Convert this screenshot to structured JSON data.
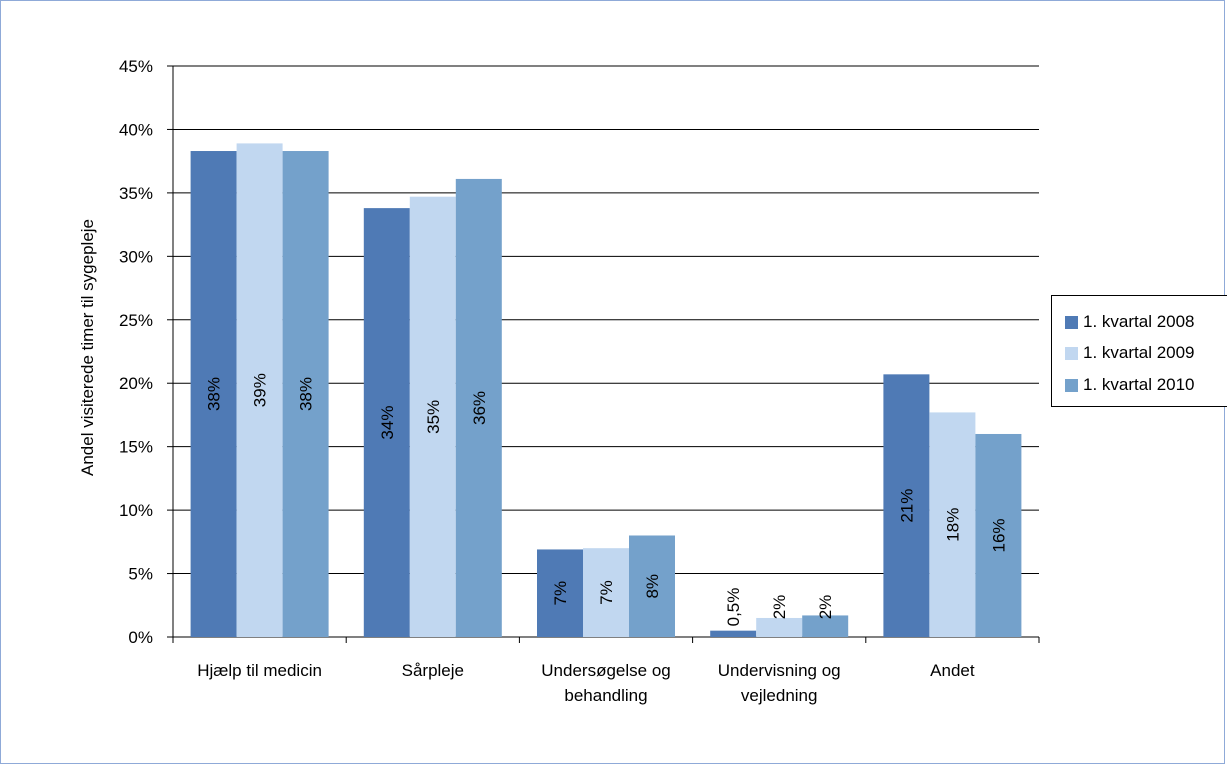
{
  "chart_data": {
    "type": "bar",
    "title": "",
    "xlabel": "",
    "ylabel": "Andel visiterede timer til sygepleje",
    "categories": [
      [
        "Hjælp til medicin"
      ],
      [
        "Sårpleje"
      ],
      [
        "Undersøgelse og",
        "behandling"
      ],
      [
        "Undervisning og",
        "vejledning"
      ],
      [
        "Andet"
      ]
    ],
    "series": [
      {
        "name": "1. kvartal 2008",
        "color": "#4f7ab5",
        "values": [
          38.3,
          33.8,
          6.9,
          0.5,
          20.7
        ],
        "labels": [
          "38%",
          "34%",
          "7%",
          "0,5%",
          "21%"
        ]
      },
      {
        "name": "1. kvartal 2009",
        "color": "#c1d7f0",
        "values": [
          38.9,
          34.7,
          7.0,
          1.5,
          17.7
        ],
        "labels": [
          "39%",
          "35%",
          "7%",
          "2%",
          "18%"
        ]
      },
      {
        "name": "1. kvartal 2010",
        "color": "#74a1cb",
        "values": [
          38.3,
          36.1,
          8.0,
          1.7,
          16.0
        ],
        "labels": [
          "38%",
          "36%",
          "8%",
          "2%",
          "16%"
        ]
      }
    ],
    "ylim": [
      0,
      45
    ],
    "yticks": [
      0,
      5,
      10,
      15,
      20,
      25,
      30,
      35,
      40,
      45
    ],
    "ytick_labels": [
      "0%",
      "5%",
      "10%",
      "15%",
      "20%",
      "25%",
      "30%",
      "35%",
      "40%",
      "45%"
    ],
    "grid": true,
    "legend_position": "right"
  }
}
